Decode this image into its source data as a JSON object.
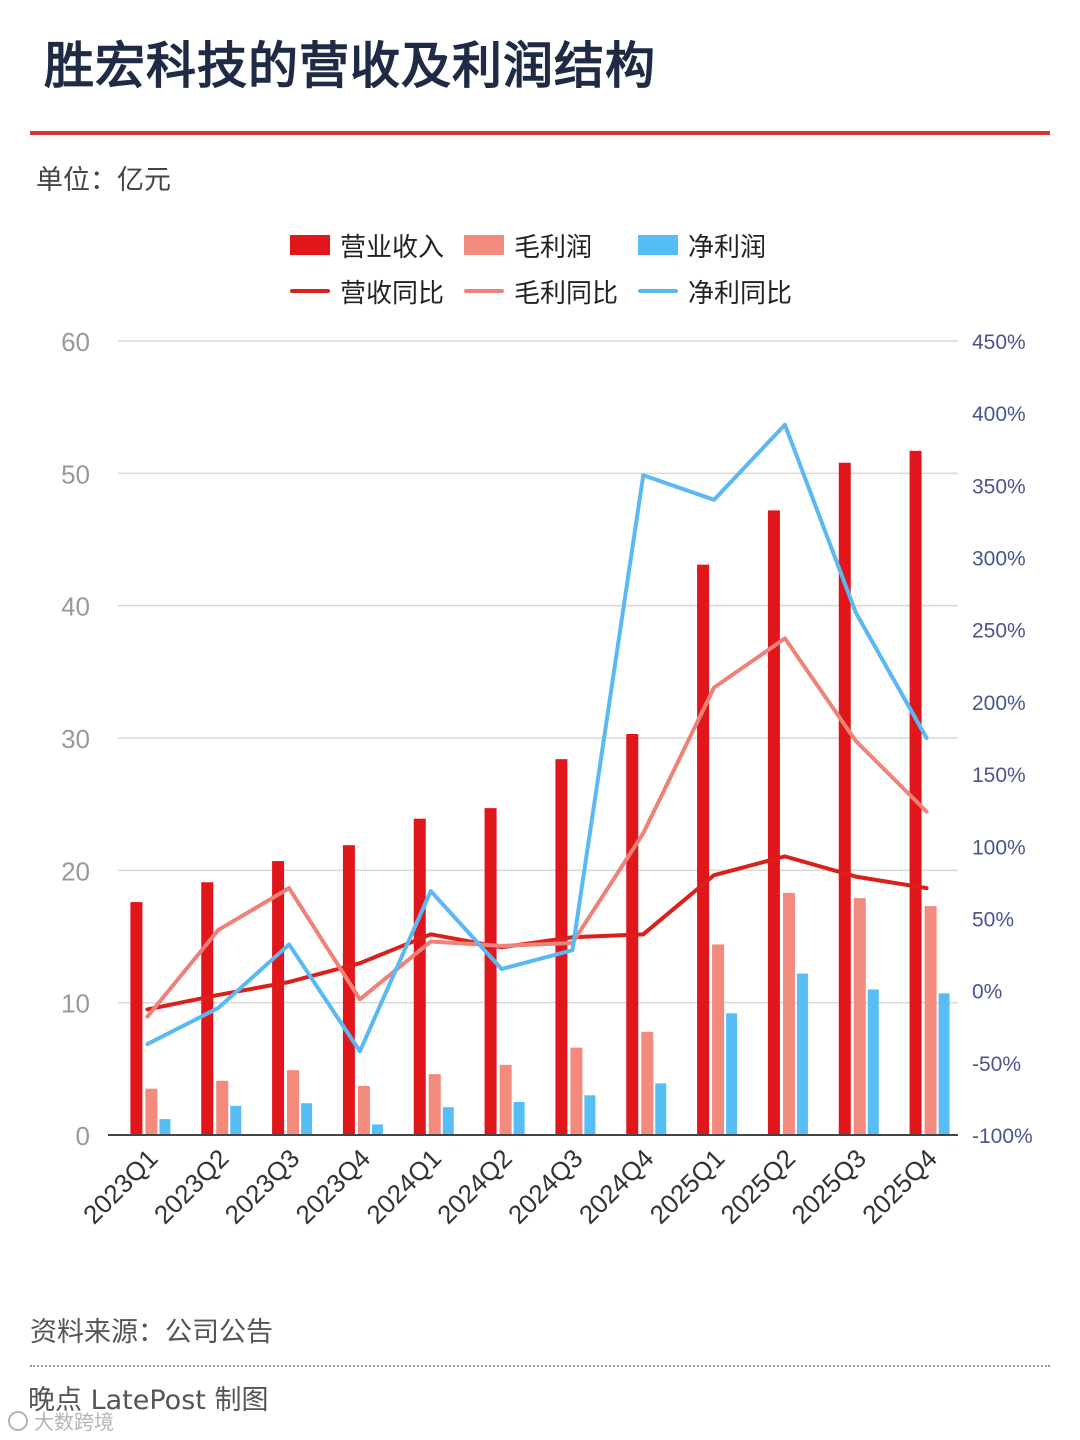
{
  "header": {
    "title": "胜宏科技的营收及利润结构",
    "unit": "单位：亿元"
  },
  "legend": [
    {
      "label": "营业收入",
      "kind": "bar",
      "color": "#e0161b"
    },
    {
      "label": "毛利润",
      "kind": "bar",
      "color": "#f28a7e"
    },
    {
      "label": "净利润",
      "kind": "bar",
      "color": "#56bdf5"
    },
    {
      "label": "营收同比",
      "kind": "line",
      "color": "#d9201b"
    },
    {
      "label": "毛利同比",
      "kind": "line",
      "color": "#ef8278"
    },
    {
      "label": "净利同比",
      "kind": "line",
      "color": "#5ab8f2"
    }
  ],
  "chart_data": {
    "type": "bar",
    "categories": [
      "2023Q1",
      "2023Q2",
      "2023Q3",
      "2023Q4",
      "2024Q1",
      "2024Q2",
      "2024Q3",
      "2024Q4",
      "2025Q1",
      "2025Q2",
      "2025Q3",
      "2025Q4"
    ],
    "series": [
      {
        "name": "营业收入",
        "type": "bar",
        "axis": "left",
        "color": "#e0161b",
        "values": [
          17.6,
          19.1,
          20.7,
          21.9,
          23.9,
          24.7,
          28.4,
          30.3,
          43.1,
          47.2,
          50.8,
          51.7
        ]
      },
      {
        "name": "毛利润",
        "type": "bar",
        "axis": "left",
        "color": "#f28a7e",
        "values": [
          3.5,
          4.1,
          4.9,
          3.7,
          4.6,
          5.3,
          6.6,
          7.8,
          14.4,
          18.3,
          17.9,
          17.3
        ]
      },
      {
        "name": "净利润",
        "type": "bar",
        "axis": "left",
        "color": "#56bdf5",
        "values": [
          1.2,
          2.2,
          2.4,
          0.8,
          2.1,
          2.5,
          3.0,
          3.9,
          9.2,
          12.2,
          11.0,
          10.7
        ]
      },
      {
        "name": "营收同比",
        "type": "line",
        "axis": "right",
        "color": "#d9201b",
        "values": [
          -13,
          -3,
          6,
          19,
          39,
          30,
          37,
          39,
          80,
          93,
          79,
          71
        ]
      },
      {
        "name": "毛利同比",
        "type": "line",
        "axis": "right",
        "color": "#ef8278",
        "values": [
          -18,
          42,
          71,
          -6,
          34,
          31,
          33,
          109,
          210,
          244,
          173,
          124
        ]
      },
      {
        "name": "净利同比",
        "type": "line",
        "axis": "right",
        "color": "#5ab8f2",
        "values": [
          -37,
          -12,
          32,
          -42,
          69,
          15,
          28,
          357,
          340,
          392,
          262,
          175
        ]
      }
    ],
    "y_left": {
      "ticks": [
        0,
        10,
        20,
        30,
        40,
        50,
        60
      ],
      "ylim": [
        0,
        60
      ]
    },
    "y_right": {
      "ticks": [
        "-100%",
        "-50%",
        "0%",
        "50%",
        "100%",
        "150%",
        "200%",
        "250%",
        "300%",
        "350%",
        "400%",
        "450%"
      ],
      "ylim": [
        -100,
        450
      ]
    },
    "grid": true,
    "legend_position": "top"
  },
  "footer": {
    "source": "资料来源：公司公告",
    "credit": "晚点 LatePost 制图",
    "stamp": "大数跨境"
  }
}
